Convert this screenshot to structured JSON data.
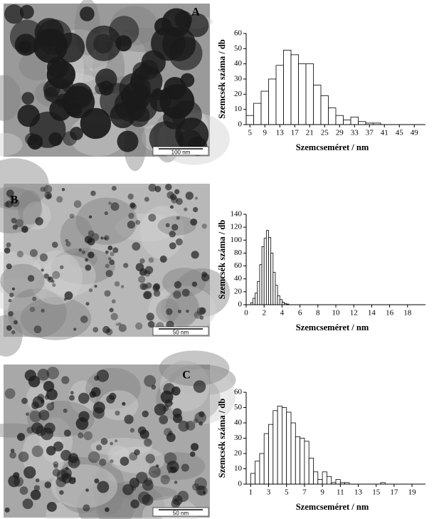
{
  "images": [
    {
      "label": "A",
      "scale_bar": "100 nm"
    },
    {
      "label": "B",
      "scale_bar": "50 nm"
    },
    {
      "label": "C",
      "scale_bar": "50 nm"
    }
  ],
  "chart_data": [
    {
      "type": "histogram",
      "xlabel": "Szemcseméret / nm",
      "ylabel": "Szemcsék száma / db",
      "bins": [
        4,
        6,
        8,
        10,
        12,
        14,
        16,
        18,
        20,
        22,
        24,
        26,
        28,
        30,
        32,
        34,
        36,
        38,
        40
      ],
      "values": [
        6,
        14,
        22,
        30,
        39,
        49,
        46,
        40,
        40,
        26,
        19,
        11,
        6,
        3,
        5,
        2,
        1,
        1
      ],
      "color": "#ffffff",
      "xlim": [
        4,
        52
      ],
      "xticks": [
        5,
        9,
        13,
        17,
        21,
        25,
        29,
        33,
        37,
        41,
        45,
        49
      ],
      "ylim": [
        0,
        60
      ],
      "yticks": [
        0,
        10,
        20,
        30,
        40,
        50,
        60
      ]
    },
    {
      "type": "histogram",
      "xlabel": "Szemcseméret / nm",
      "ylabel": "Szemcsék száma / db",
      "bins": [
        0.5,
        0.75,
        1,
        1.25,
        1.5,
        1.75,
        2,
        2.25,
        2.5,
        2.75,
        3,
        3.25,
        3.5,
        3.75,
        4,
        4.25,
        4.5,
        4.75
      ],
      "values": [
        3,
        10,
        18,
        36,
        62,
        90,
        103,
        115,
        104,
        80,
        50,
        30,
        14,
        8,
        4,
        2,
        1
      ],
      "color": "#ffffff",
      "xlim": [
        0,
        20
      ],
      "xticks": [
        0,
        2,
        4,
        6,
        8,
        10,
        12,
        14,
        16,
        18
      ],
      "ylim": [
        0,
        140
      ],
      "yticks": [
        0,
        20,
        40,
        60,
        80,
        100,
        120,
        140
      ]
    },
    {
      "type": "histogram",
      "xlabel": "Szemcseméret / nm",
      "ylabel": "Szemcsék száma / db",
      "bins": [
        1,
        1.5,
        2,
        2.5,
        3,
        3.5,
        4,
        4.5,
        5,
        5.5,
        6,
        6.5,
        7,
        7.5,
        8,
        8.5,
        9,
        9.5,
        10,
        10.5,
        11,
        11.5,
        12,
        12.5,
        13,
        13.5,
        14,
        14.5,
        15,
        15.5,
        16
      ],
      "values": [
        7,
        15,
        20,
        33,
        39,
        48,
        51,
        50,
        47,
        40,
        31,
        30,
        28,
        17,
        8,
        3,
        8,
        5,
        1,
        3,
        1,
        1,
        0,
        0,
        0,
        0,
        0,
        0,
        0,
        1
      ],
      "color": "#ffffff",
      "xlim": [
        0.5,
        20.5
      ],
      "xticks": [
        1,
        3,
        5,
        7,
        9,
        11,
        13,
        15,
        17,
        19
      ],
      "ylim": [
        0,
        60
      ],
      "yticks": [
        0,
        10,
        20,
        30,
        40,
        50,
        60
      ]
    }
  ]
}
